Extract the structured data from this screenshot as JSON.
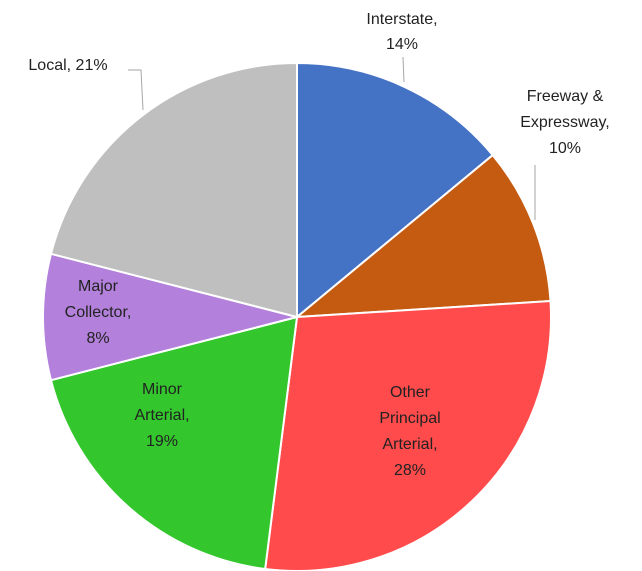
{
  "chart_data": {
    "type": "pie",
    "values": [
      14,
      10,
      28,
      19,
      8,
      21
    ],
    "value_labels": [
      "Interstate,\n14%",
      "Freeway &\nExpressway,\n10%",
      "Other\nPrincipal\nArterial,\n28%",
      "Minor\nArterial,\n19%",
      "Major\nCollector,\n8%",
      "Local, 21%"
    ],
    "colors": [
      "#4472c4",
      "#c55a11",
      "#ff4b4b",
      "#33c72d",
      "#b380db",
      "#bfbfbf"
    ]
  }
}
